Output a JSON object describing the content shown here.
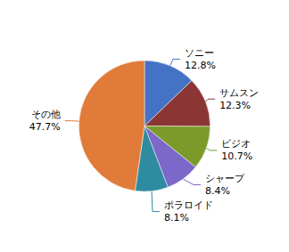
{
  "chart_data": {
    "type": "pie",
    "categories": [
      "ソニー",
      "サムスン",
      "ビジオ",
      "シャープ",
      "ポラロイド",
      "その他"
    ],
    "values": [
      12.8,
      12.3,
      10.7,
      8.4,
      8.1,
      47.7
    ],
    "value_labels": [
      "12.8%",
      "12.3%",
      "10.7%",
      "8.4%",
      "8.1%",
      "47.7%"
    ],
    "colors": [
      "#4472C4",
      "#8B3535",
      "#7B9A2A",
      "#7B68C8",
      "#2E8BA0",
      "#E07B39"
    ],
    "data_labels": true,
    "legend": false
  }
}
